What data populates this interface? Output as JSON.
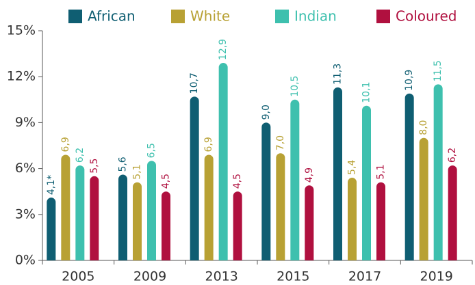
{
  "chart_data": {
    "type": "bar",
    "categories": [
      "2005",
      "2009",
      "2013",
      "2015",
      "2017",
      "2019"
    ],
    "series": [
      {
        "name": "African",
        "color": "#0f5e72",
        "values": [
          4.1,
          5.6,
          10.7,
          9.0,
          11.3,
          10.9
        ],
        "value_labels": [
          "4,1*",
          "5,6",
          "10,7",
          "9,0",
          "11,3",
          "10,9"
        ]
      },
      {
        "name": "White",
        "color": "#b8a134",
        "values": [
          6.9,
          5.1,
          6.9,
          7.0,
          5.4,
          8.0
        ],
        "value_labels": [
          "6,9",
          "5,1",
          "6,9",
          "7,0",
          "5,4",
          "8,0"
        ]
      },
      {
        "name": "Indian",
        "color": "#3ec0ae",
        "values": [
          6.2,
          6.5,
          12.9,
          10.5,
          10.1,
          11.5
        ],
        "value_labels": [
          "6,2",
          "6,5",
          "12,9",
          "10,5",
          "10,1",
          "11,5"
        ]
      },
      {
        "name": "Coloured",
        "color": "#b0103f",
        "values": [
          5.5,
          4.5,
          4.5,
          4.9,
          5.1,
          6.2
        ],
        "value_labels": [
          "5,5",
          "4,5",
          "4,5",
          "4,9",
          "5,1",
          "6,2"
        ]
      }
    ],
    "ylim": [
      0,
      15
    ],
    "yticks": [
      {
        "value": 0,
        "label": "0%"
      },
      {
        "value": 3,
        "label": "3%"
      },
      {
        "value": 6,
        "label": "6%"
      },
      {
        "value": 9,
        "label": "9%"
      },
      {
        "value": 12,
        "label": "12%"
      },
      {
        "value": 15,
        "label": "15%"
      }
    ],
    "legend": "top"
  }
}
